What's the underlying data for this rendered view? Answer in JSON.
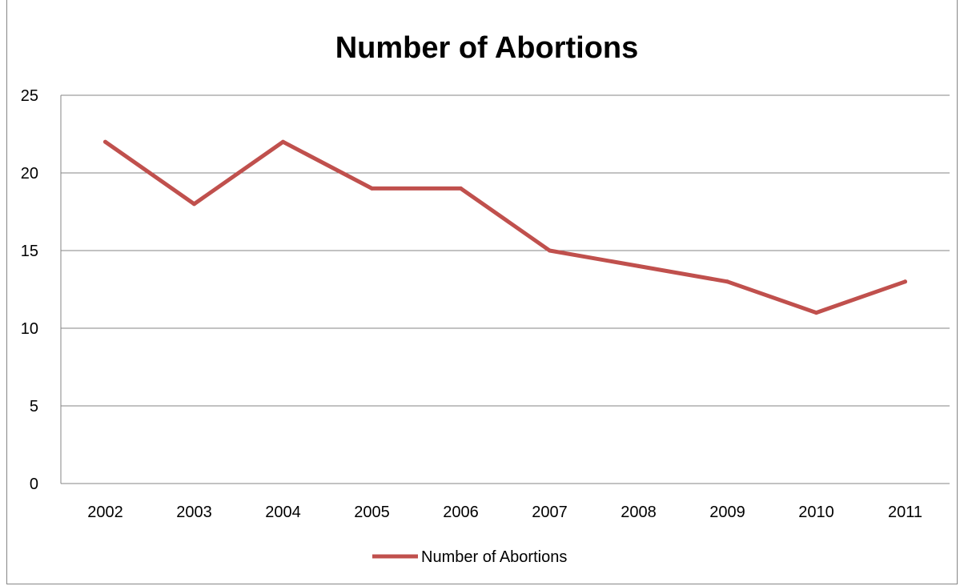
{
  "chart_data": {
    "type": "line",
    "title": "Number of Abortions",
    "categories": [
      "2002",
      "2003",
      "2004",
      "2005",
      "2006",
      "2007",
      "2008",
      "2009",
      "2010",
      "2011"
    ],
    "series": [
      {
        "name": "Number of Abortions",
        "values": [
          22,
          18,
          22,
          19,
          19,
          15,
          14,
          13,
          11,
          13
        ]
      }
    ],
    "xlabel": "",
    "ylabel": "",
    "ylim": [
      0,
      25
    ],
    "yticks": [
      "0",
      "5",
      "10",
      "15",
      "20",
      "25"
    ],
    "grid": "horizontal",
    "legend_position": "bottom",
    "colors": {
      "line": "#C0504D",
      "grid": "#868686",
      "axis": "#868686"
    }
  }
}
